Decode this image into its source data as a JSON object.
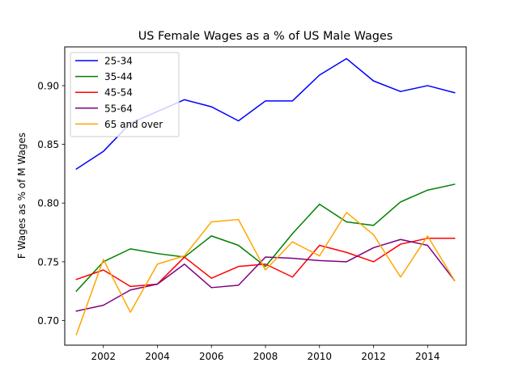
{
  "chart_data": {
    "type": "line",
    "title": "US Female Wages as a % of US Male Wages",
    "xlabel": "",
    "ylabel": "F Wages as % of M Wages",
    "xlim": [
      2000.57,
      2015.43
    ],
    "ylim": [
      0.679,
      0.933
    ],
    "x_ticks": [
      2002,
      2004,
      2006,
      2008,
      2010,
      2012,
      2014
    ],
    "x_tick_labels": [
      "2002",
      "2004",
      "2006",
      "2008",
      "2010",
      "2012",
      "2014"
    ],
    "y_ticks": [
      0.7,
      0.75,
      0.8,
      0.85,
      0.9
    ],
    "y_tick_labels": [
      "0.70",
      "0.75",
      "0.80",
      "0.85",
      "0.90"
    ],
    "grid": false,
    "legend_position": "top-left",
    "x": [
      2001,
      2002,
      2003,
      2004,
      2005,
      2006,
      2007,
      2008,
      2009,
      2010,
      2011,
      2012,
      2013,
      2014,
      2015
    ],
    "series": [
      {
        "name": "25-34",
        "color": "#0000ff",
        "values": [
          0.829,
          0.844,
          0.868,
          0.878,
          0.888,
          0.882,
          0.87,
          0.887,
          0.887,
          0.909,
          0.923,
          0.904,
          0.895,
          0.9,
          0.894
        ]
      },
      {
        "name": "35-44",
        "color": "#008000",
        "values": [
          0.725,
          0.75,
          0.761,
          0.757,
          0.754,
          0.772,
          0.764,
          0.746,
          0.774,
          0.799,
          0.784,
          0.781,
          0.801,
          0.811,
          0.816
        ]
      },
      {
        "name": "45-54",
        "color": "#ff0000",
        "values": [
          0.735,
          0.743,
          0.729,
          0.731,
          0.754,
          0.736,
          0.746,
          0.748,
          0.737,
          0.764,
          0.758,
          0.75,
          0.765,
          0.77,
          0.77
        ]
      },
      {
        "name": "55-64",
        "color": "#800080",
        "values": [
          0.708,
          0.713,
          0.726,
          0.731,
          0.748,
          0.728,
          0.73,
          0.754,
          0.753,
          0.751,
          0.75,
          0.762,
          0.769,
          0.764,
          0.734
        ]
      },
      {
        "name": "65 and over",
        "color": "#ffa500",
        "values": [
          0.688,
          0.752,
          0.707,
          0.748,
          0.755,
          0.784,
          0.786,
          0.743,
          0.767,
          0.755,
          0.792,
          0.773,
          0.737,
          0.772,
          0.734
        ]
      }
    ]
  }
}
